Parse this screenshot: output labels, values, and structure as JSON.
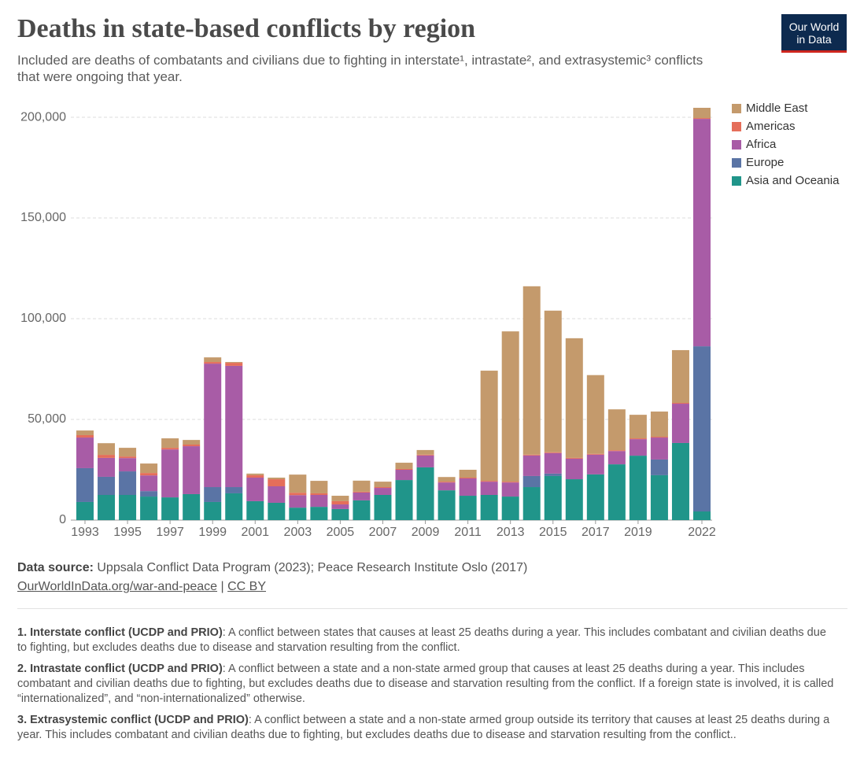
{
  "chart_data": {
    "type": "stacked-bar",
    "title": "Deaths in state-based conflicts by region",
    "subtitle": "Included are deaths of combatants and civilians due to fighting in interstate¹, intrastate², and extrasystemic³ conflicts that were ongoing that year.",
    "categories": [
      "1993",
      null,
      "1995",
      null,
      "1997",
      null,
      "1999",
      null,
      "2001",
      null,
      "2003",
      null,
      "2005",
      null,
      "2007",
      null,
      "2009",
      null,
      "2011",
      null,
      "2013",
      null,
      "2015",
      null,
      "2017",
      null,
      "2019",
      null,
      null,
      "2022"
    ],
    "series": [
      {
        "name": "Asia and Oceania",
        "color": "#20958a",
        "values": [
          9000,
          12500,
          12500,
          11700,
          11300,
          12900,
          9000,
          13300,
          9400,
          8600,
          6200,
          6600,
          5500,
          9800,
          12500,
          19900,
          26200,
          14800,
          12100,
          12500,
          11700,
          16400,
          21900,
          20300,
          22700,
          27700,
          32000,
          22300,
          38300,
          4300
        ]
      },
      {
        "name": "Europe",
        "color": "#5a74a5",
        "values": [
          16800,
          9000,
          11700,
          2700,
          0,
          0,
          7400,
          3100,
          0,
          0,
          0,
          0,
          0,
          0,
          0,
          0,
          0,
          0,
          0,
          0,
          0,
          5500,
          1200,
          0,
          0,
          0,
          0,
          7800,
          0,
          82000
        ]
      },
      {
        "name": "Africa",
        "color": "#a85ca6",
        "values": [
          15200,
          9400,
          6600,
          7800,
          23800,
          23800,
          61300,
          60200,
          11700,
          8200,
          6200,
          5900,
          2300,
          3900,
          3500,
          5100,
          5900,
          3900,
          8600,
          6600,
          7000,
          10200,
          10200,
          10200,
          9800,
          6600,
          8200,
          10900,
          19500,
          112900
        ]
      },
      {
        "name": "Americas",
        "color": "#e56e5a",
        "values": [
          1200,
          1500,
          800,
          1200,
          800,
          800,
          800,
          1500,
          1200,
          3500,
          1200,
          800,
          1600,
          400,
          400,
          400,
          400,
          400,
          400,
          400,
          400,
          400,
          400,
          400,
          400,
          400,
          400,
          400,
          400,
          400
        ]
      },
      {
        "name": "Middle East",
        "color": "#c49a6c",
        "values": [
          2300,
          5800,
          4300,
          4700,
          4700,
          2300,
          2300,
          400,
          800,
          800,
          9000,
          6200,
          2700,
          5500,
          2700,
          3100,
          2300,
          2300,
          3900,
          54700,
          74600,
          83600,
          70300,
          59400,
          39100,
          20300,
          11700,
          12500,
          26200,
          5100
        ]
      }
    ],
    "ylim": [
      0,
      204700
    ],
    "yticks": [
      0,
      {
        "value": 50000,
        "label": "50,000"
      },
      {
        "value": 100000,
        "label": "100,000"
      },
      {
        "value": 150000,
        "label": "150,000"
      },
      {
        "value": 200000,
        "label": "200,000"
      }
    ],
    "grid": true,
    "legend": "right"
  },
  "logo": {
    "line1": "Our World",
    "line2": "in Data"
  },
  "source": {
    "label": "Data source:",
    "text": "Uppsala Conflict Data Program (2023); Peace Research Institute Oslo (2017)",
    "link": "OurWorldInData.org/war-and-peace",
    "separator": "|",
    "license": "CC BY"
  },
  "notes": [
    {
      "term": "1. Interstate conflict (UCDP and PRIO)",
      "text": ": A conflict between states that causes at least 25 deaths during a year. This includes combatant and civilian deaths due to fighting, but excludes deaths due to disease and starvation resulting from the conflict."
    },
    {
      "term": "2. Intrastate conflict (UCDP and PRIO)",
      "text": ": A conflict between a state and a non-state armed group that causes at least 25 deaths during a year. This includes combatant and civilian deaths due to fighting, but excludes deaths due to disease and starvation resulting from the conflict. If a foreign state is involved, it is called “internationalized”, and “non-internationalized” otherwise."
    },
    {
      "term": "3. Extrasystemic conflict (UCDP and PRIO)",
      "text": ": A conflict between a state and a non-state armed group outside its territory that causes at least 25 deaths during a year. This includes combatant and civilian deaths due to fighting, but excludes deaths due to disease and starvation resulting from the conflict.."
    }
  ]
}
